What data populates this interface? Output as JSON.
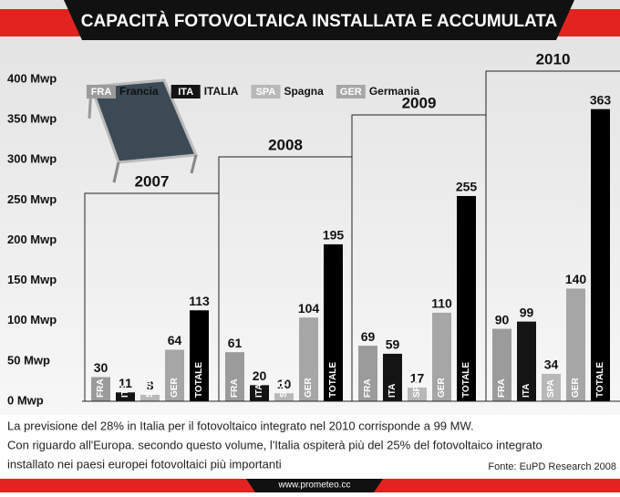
{
  "chart_data": {
    "type": "bar",
    "title": "CAPACITÀ FOTOVOLTAICA INSTALLATA E ACCUMULATA",
    "categories": [
      "2007",
      "2008",
      "2009",
      "2010"
    ],
    "series": [
      {
        "code": "FRA",
        "name": "Francia",
        "color": "#9b9b9b",
        "values": [
          30,
          61,
          69,
          90
        ]
      },
      {
        "code": "ITA",
        "name": "ITALIA",
        "color": "#141414",
        "values": [
          11,
          20,
          59,
          99
        ]
      },
      {
        "code": "SPA",
        "name": "Spagna",
        "color": "#b8b8b8",
        "values": [
          8,
          10,
          17,
          34
        ]
      },
      {
        "code": "GER",
        "name": "Germania",
        "color": "#a6a6a6",
        "values": [
          64,
          104,
          110,
          140
        ]
      },
      {
        "code": "TOTALE",
        "color": "#000000",
        "values": [
          113,
          195,
          255,
          363
        ]
      }
    ],
    "ylim": [
      0,
      400
    ],
    "yticks": [
      {
        "value": 0,
        "label": "0 Mwp"
      },
      {
        "value": 50,
        "label": "50 Mwp"
      },
      {
        "value": 100,
        "label": "100 Mwp"
      },
      {
        "value": 150,
        "label": "150 Mwp"
      },
      {
        "value": 200,
        "label": "200 Mwp"
      },
      {
        "value": 250,
        "label": "250 Mwp"
      },
      {
        "value": 300,
        "label": "300 Mwp"
      },
      {
        "value": 350,
        "label": "350 Mwp"
      },
      {
        "value": 400,
        "label": "400 Mwp"
      }
    ],
    "notes": [
      "La previsione del 28% in Italia per il fotovoltaico integrato nel 2010 corrisponde a 99 MW.",
      "Con riguardo all'Europa. secondo questo volume, l'Italia ospiterà più del 25% del fotovoltaico integrato",
      "installato nei paesi europei fotovoltaici più importanti"
    ],
    "source": "Fonte: EuPD Research 2008",
    "website": "www.prometeo.cc"
  }
}
